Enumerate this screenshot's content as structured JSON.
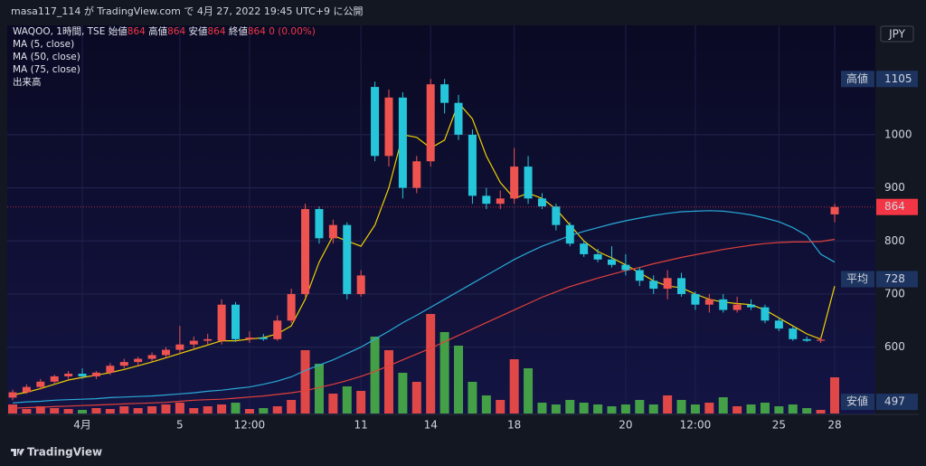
{
  "header": {
    "publish": "masa117_114 が TradingView.com で 4月 27, 2022 19:45 UTC+9 に公開"
  },
  "chart_data": {
    "type": "candlestick",
    "symbol": "WAQOO, 1時間, TSE",
    "ohlc_legend": [
      {
        "label": "始値",
        "value": 864
      },
      {
        "label": "高値",
        "value": 864
      },
      {
        "label": "安値",
        "value": 864
      },
      {
        "label": "終値",
        "value": 864
      }
    ],
    "change": "0 (0.00%)",
    "currency": "JPY",
    "categories": [
      null,
      null,
      null,
      null,
      null,
      "4月",
      null,
      null,
      null,
      null,
      null,
      null,
      "5",
      null,
      null,
      null,
      null,
      "12:00",
      null,
      null,
      null,
      null,
      null,
      null,
      null,
      "11",
      null,
      null,
      null,
      null,
      "14",
      null,
      null,
      null,
      null,
      null,
      "18",
      null,
      null,
      null,
      null,
      null,
      null,
      null,
      "20",
      null,
      null,
      null,
      null,
      "12:00",
      null,
      null,
      null,
      null,
      null,
      "25",
      null,
      null,
      null,
      "28"
    ],
    "open": [
      505,
      515,
      525,
      535,
      545,
      550,
      545,
      552,
      565,
      572,
      578,
      585,
      595,
      605,
      612,
      612,
      680,
      615,
      618,
      615,
      650,
      700,
      860,
      805,
      830,
      700,
      1090,
      960,
      1070,
      900,
      950,
      1095,
      1060,
      1000,
      885,
      870,
      880,
      940,
      880,
      865,
      830,
      795,
      775,
      765,
      755,
      745,
      725,
      710,
      730,
      700,
      680,
      690,
      670,
      680,
      675,
      650,
      635,
      615,
      612,
      850
    ],
    "high": [
      520,
      530,
      540,
      548,
      555,
      560,
      555,
      570,
      578,
      582,
      590,
      600,
      640,
      620,
      625,
      690,
      685,
      630,
      625,
      660,
      710,
      870,
      865,
      840,
      835,
      745,
      1100,
      1085,
      1080,
      960,
      1105,
      1105,
      1075,
      1010,
      900,
      895,
      975,
      960,
      890,
      870,
      835,
      800,
      785,
      790,
      775,
      750,
      735,
      745,
      740,
      705,
      700,
      700,
      695,
      690,
      680,
      655,
      640,
      620,
      620,
      870
    ],
    "low": [
      500,
      512,
      520,
      530,
      538,
      540,
      540,
      548,
      560,
      565,
      572,
      580,
      588,
      598,
      605,
      605,
      610,
      608,
      612,
      612,
      645,
      695,
      795,
      795,
      690,
      695,
      950,
      940,
      880,
      890,
      940,
      1040,
      990,
      870,
      860,
      860,
      870,
      870,
      860,
      820,
      790,
      770,
      760,
      750,
      735,
      715,
      700,
      690,
      695,
      670,
      665,
      665,
      665,
      670,
      645,
      630,
      612,
      610,
      608,
      835
    ],
    "close": [
      515,
      525,
      535,
      545,
      550,
      545,
      552,
      565,
      572,
      578,
      585,
      595,
      605,
      612,
      615,
      680,
      615,
      618,
      615,
      650,
      700,
      860,
      805,
      830,
      700,
      735,
      960,
      1070,
      900,
      950,
      1095,
      1060,
      1000,
      885,
      870,
      880,
      940,
      880,
      865,
      830,
      795,
      775,
      765,
      755,
      745,
      725,
      710,
      730,
      700,
      680,
      690,
      670,
      680,
      675,
      650,
      635,
      615,
      612,
      614,
      864
    ],
    "up_color": "#ef5350",
    "down_color": "#26c6da",
    "volume": {
      "name": "出来高",
      "values": [
        10,
        5,
        8,
        6,
        5,
        4,
        6,
        5,
        8,
        6,
        8,
        10,
        12,
        6,
        8,
        10,
        12,
        5,
        6,
        8,
        15,
        70,
        55,
        22,
        30,
        25,
        85,
        70,
        45,
        35,
        110,
        90,
        75,
        35,
        20,
        15,
        60,
        50,
        12,
        10,
        15,
        12,
        10,
        8,
        10,
        15,
        10,
        20,
        15,
        10,
        12,
        18,
        8,
        10,
        12,
        8,
        10,
        6,
        4,
        40
      ],
      "up_color": "#e04848",
      "down_color": "#43a047"
    },
    "series": [
      {
        "name": "MA (5, close)",
        "color": "#f0d000",
        "values": [
          510,
          515,
          522,
          530,
          538,
          543,
          547,
          552,
          558,
          565,
          572,
          580,
          588,
          596,
          604,
          612,
          612,
          615,
          618,
          625,
          640,
          690,
          760,
          810,
          800,
          790,
          830,
          900,
          1000,
          995,
          975,
          990,
          1060,
          1030,
          960,
          910,
          880,
          890,
          880,
          860,
          830,
          800,
          780,
          768,
          755,
          740,
          725,
          715,
          712,
          700,
          690,
          685,
          682,
          680,
          670,
          655,
          640,
          625,
          615,
          715
        ]
      },
      {
        "name": "MA (50, close)",
        "color": "#29a9d6",
        "values": [
          495,
          497,
          498,
          500,
          501,
          502,
          503,
          505,
          506,
          507,
          508,
          510,
          512,
          514,
          517,
          519,
          522,
          525,
          530,
          536,
          544,
          556,
          566,
          576,
          588,
          600,
          615,
          630,
          646,
          660,
          675,
          690,
          705,
          720,
          735,
          750,
          765,
          778,
          790,
          800,
          810,
          818,
          825,
          832,
          838,
          843,
          848,
          852,
          855,
          856,
          857,
          856,
          853,
          849,
          843,
          836,
          825,
          810,
          775,
          760
        ]
      },
      {
        "name": "MA (75, close)",
        "color": "#e0403a",
        "values": [
          485,
          486,
          487,
          488,
          489,
          490,
          491,
          492,
          493,
          494,
          495,
          496,
          498,
          500,
          501,
          502,
          504,
          506,
          508,
          511,
          514,
          518,
          524,
          530,
          537,
          545,
          554,
          565,
          576,
          587,
          598,
          610,
          622,
          634,
          646,
          658,
          670,
          682,
          694,
          704,
          714,
          722,
          730,
          737,
          744,
          750,
          757,
          763,
          769,
          774,
          779,
          784,
          788,
          792,
          795,
          797,
          798,
          798,
          799,
          803
        ]
      }
    ],
    "ylim": [
      475,
      1206
    ],
    "yticks": [
      600,
      700,
      800,
      900,
      1000
    ],
    "grid": true,
    "price_tags": [
      {
        "label": "高値",
        "value": 1105,
        "color": "#1d3461"
      },
      {
        "value": 864,
        "color": "#f23645"
      },
      {
        "label": "平均",
        "value": 728,
        "color": "#1d3461"
      },
      {
        "label": "安値",
        "value": 497,
        "color": "#1d3461"
      }
    ]
  },
  "footer": {
    "brand": "TradingView"
  }
}
